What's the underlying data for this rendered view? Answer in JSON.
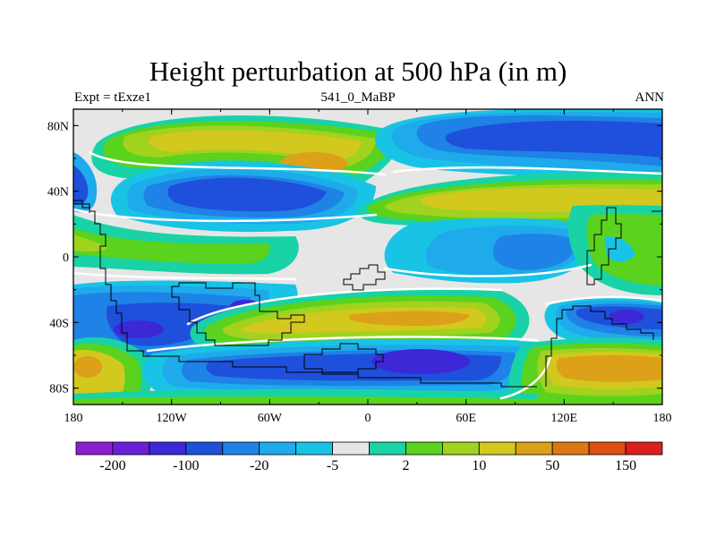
{
  "chart_data": {
    "type": "contour-map",
    "title": "Height perturbation at 500 hPa (in m)",
    "subtitle_left": "Expt = tExze1",
    "subtitle_center": "541_0_MaBP",
    "subtitle_right": "ANN",
    "units": "m",
    "x_ticks": [
      "180",
      "120W",
      "60W",
      "0",
      "60E",
      "120E",
      "180"
    ],
    "y_ticks": [
      "80N",
      "40N",
      "0",
      "40S",
      "80S"
    ],
    "xlim": [
      -180,
      180
    ],
    "ylim": [
      -90,
      90
    ],
    "colorbar": {
      "labels": [
        "-200",
        "-100",
        "-20",
        "-5",
        "2",
        "10",
        "50",
        "150"
      ],
      "colors": [
        "#8c1ed2",
        "#6b1ed7",
        "#3c28d7",
        "#1e50dc",
        "#1e82e6",
        "#1eaaeb",
        "#19c3e6",
        "#e6e6e6",
        "#19d2a5",
        "#5ad21e",
        "#a0d21e",
        "#d2c81e",
        "#dca019",
        "#dc7814",
        "#dc5014",
        "#dc1e1e"
      ]
    },
    "features": [
      {
        "name": "northern high (north pacific)",
        "sign": "positive",
        "lon": -95,
        "lat": 63,
        "peak_m": 50
      },
      {
        "name": "northern low (north america)",
        "sign": "negative",
        "lon": -85,
        "lat": 40,
        "peak_m": -100
      },
      {
        "name": "northern low (eurasia)",
        "sign": "negative",
        "lon": 120,
        "lat": 66,
        "peak_m": -100
      },
      {
        "name": "northern high (asia)",
        "sign": "positive",
        "lon": 95,
        "lat": 42,
        "peak_m": 50
      },
      {
        "name": "tropical low (indian ocean)",
        "sign": "negative",
        "lon": 80,
        "lat": 0,
        "peak_m": -20
      },
      {
        "name": "southern high (south atlantic)",
        "sign": "positive",
        "lon": 25,
        "lat": -32,
        "peak_m": 50
      },
      {
        "name": "southern low (southern ocean)",
        "sign": "negative",
        "lon": 20,
        "lat": -62,
        "peak_m": -100
      },
      {
        "name": "southern low (south pacific)",
        "sign": "negative",
        "lon": -140,
        "lat": -45,
        "peak_m": -100
      },
      {
        "name": "southern high (australia)",
        "sign": "positive",
        "lon": 145,
        "lat": -65,
        "peak_m": 50
      },
      {
        "name": "southern low (australia)",
        "sign": "negative",
        "lon": 150,
        "lat": -35,
        "peak_m": -100
      }
    ]
  }
}
